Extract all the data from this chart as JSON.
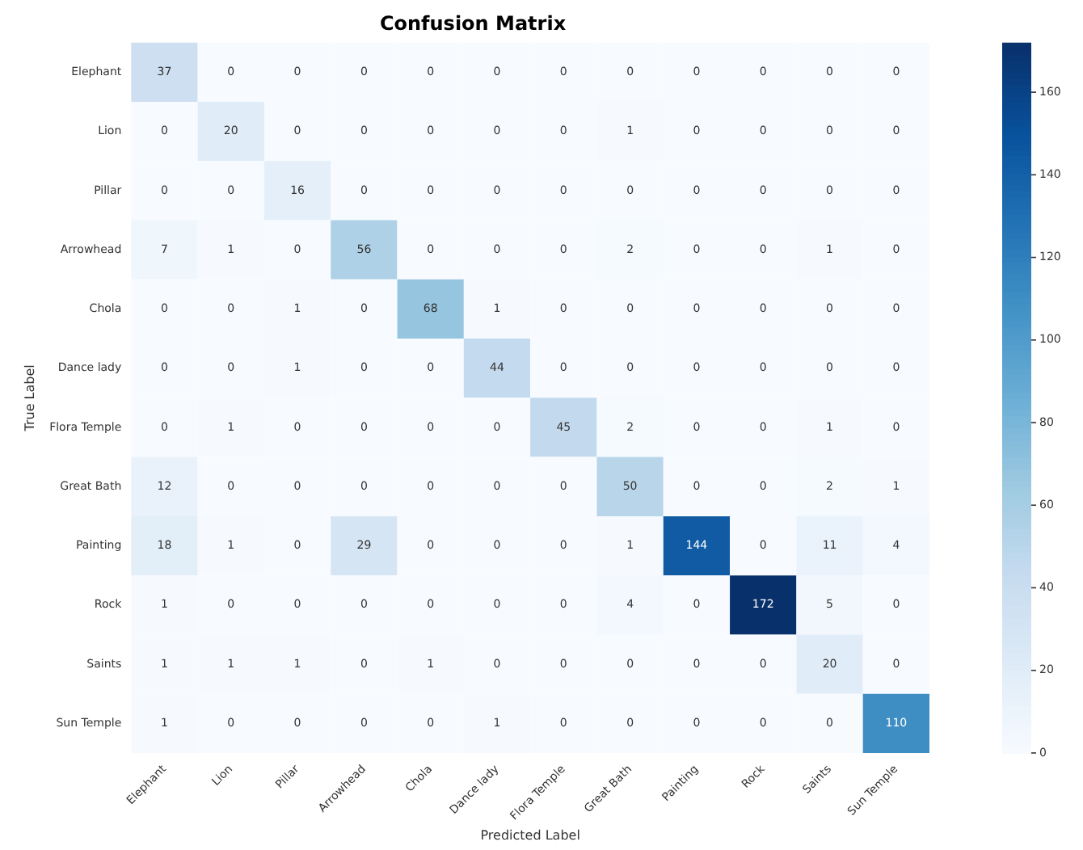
{
  "chart_data": {
    "type": "heatmap",
    "title": "Confusion Matrix",
    "xlabel": "Predicted Label",
    "ylabel": "True Label",
    "categories": [
      "Elephant",
      "Lion",
      "Pillar",
      "Arrowhead",
      "Chola",
      "Dance lady",
      "Flora Temple",
      "Great Bath",
      "Painting",
      "Rock",
      "Saints",
      "Sun Temple"
    ],
    "y_categories": [
      "Elephant",
      "Lion",
      "Pillar",
      "Arrowhead",
      "Chola",
      "Dance lady",
      "Flora Temple",
      "Great Bath",
      "Painting",
      "Rock",
      "Saints",
      "Sun Temple"
    ],
    "cells": [
      [
        37,
        0,
        0,
        0,
        0,
        0,
        0,
        0,
        0,
        0,
        0,
        0
      ],
      [
        0,
        20,
        0,
        0,
        0,
        0,
        0,
        1,
        0,
        0,
        0,
        0
      ],
      [
        0,
        0,
        16,
        0,
        0,
        0,
        0,
        0,
        0,
        0,
        0,
        0
      ],
      [
        7,
        1,
        0,
        56,
        0,
        0,
        0,
        2,
        0,
        0,
        1,
        0
      ],
      [
        0,
        0,
        1,
        0,
        68,
        1,
        0,
        0,
        0,
        0,
        0,
        0
      ],
      [
        0,
        0,
        1,
        0,
        0,
        44,
        0,
        0,
        0,
        0,
        0,
        0
      ],
      [
        0,
        1,
        0,
        0,
        0,
        0,
        45,
        2,
        0,
        0,
        1,
        0
      ],
      [
        12,
        0,
        0,
        0,
        0,
        0,
        0,
        50,
        0,
        0,
        2,
        1
      ],
      [
        18,
        1,
        0,
        29,
        0,
        0,
        0,
        1,
        144,
        0,
        11,
        4
      ],
      [
        1,
        0,
        0,
        0,
        0,
        0,
        0,
        4,
        0,
        172,
        5,
        0
      ],
      [
        1,
        1,
        1,
        0,
        1,
        0,
        0,
        0,
        0,
        0,
        20,
        0
      ],
      [
        1,
        0,
        0,
        0,
        0,
        1,
        0,
        0,
        0,
        0,
        0,
        110
      ]
    ],
    "clim": [
      0,
      172
    ],
    "cticks": [
      0,
      20,
      40,
      60,
      80,
      100,
      120,
      140,
      160
    ],
    "data_labels": true
  }
}
